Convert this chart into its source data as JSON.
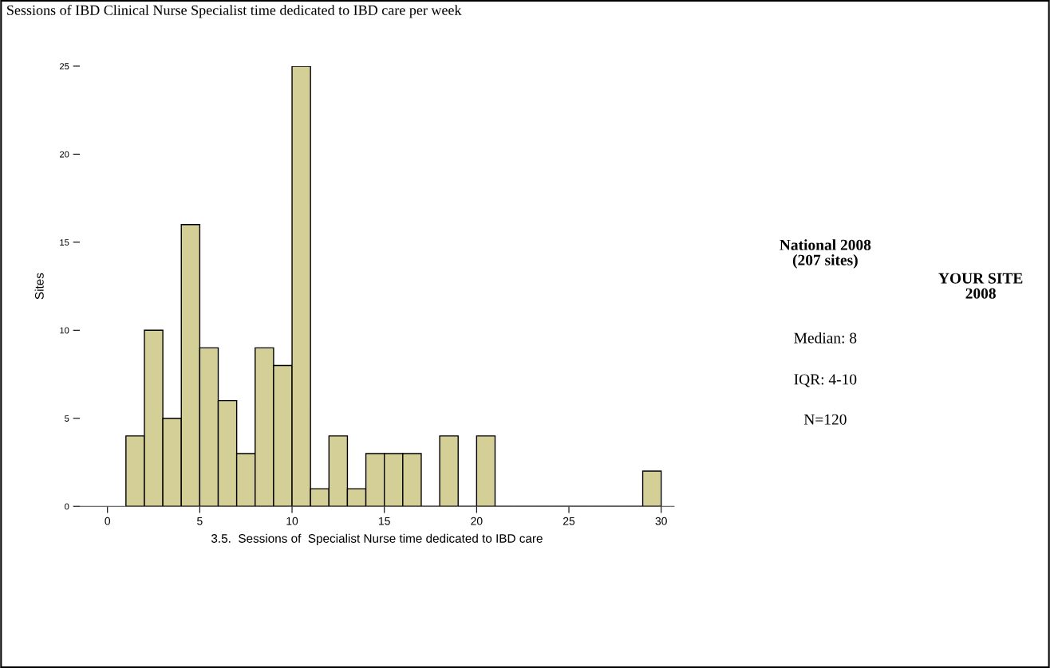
{
  "chart_data": {
    "type": "histogram",
    "title": "Sessions of IBD Clinical Nurse Specialist time dedicated to IBD care per week",
    "xlabel": "3.5.  Sessions of  Specialist Nurse time dedicated to IBD care",
    "ylabel": "Sites",
    "bins": [
      1,
      2,
      3,
      4,
      5,
      6,
      7,
      8,
      9,
      10,
      11,
      12,
      13,
      14,
      15,
      16,
      17,
      18,
      19,
      20,
      21,
      22,
      23,
      24,
      25,
      26,
      27,
      28,
      29,
      30
    ],
    "values": [
      4,
      10,
      5,
      16,
      9,
      6,
      3,
      9,
      8,
      25,
      1,
      4,
      1,
      3,
      3,
      3,
      0,
      4,
      0,
      4,
      0,
      0,
      0,
      0,
      0,
      0,
      0,
      0,
      2
    ],
    "color": "#d4cf97",
    "xlim": [
      -1.5,
      30.7
    ],
    "xticks": [
      0,
      5,
      10,
      15,
      20,
      25,
      30
    ],
    "ylim": [
      0,
      25
    ],
    "yticks": [
      0,
      5,
      10,
      15,
      20,
      25
    ],
    "grid": false,
    "legend": false,
    "annotations": [
      "National 2008\n(207 sites)",
      "YOUR SITE\n2008",
      "Median: 8",
      "IQR: 4-10",
      "N=120"
    ]
  }
}
